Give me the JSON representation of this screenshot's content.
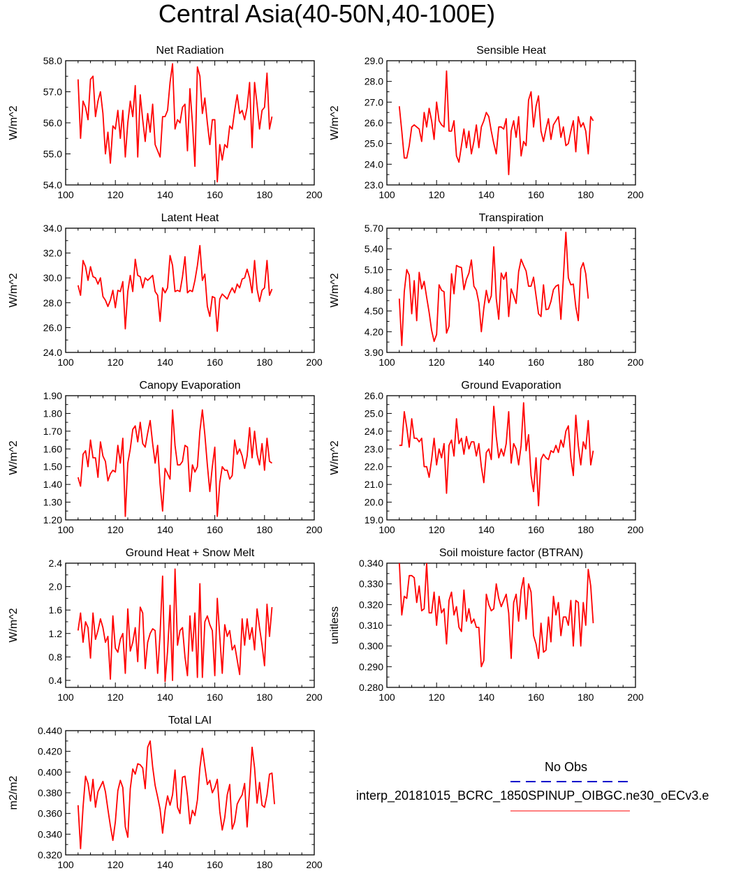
{
  "title": "Central Asia(40-50N,40-100E)",
  "legend": {
    "obs_label": "No Obs",
    "model_label": "interp_20181015_BCRC_1850SPINUP_OIBGC.ne30_oECv3.e",
    "obs_color": "#0000cc",
    "model_color": "#ff0000"
  },
  "chart_data": [
    {
      "type": "line",
      "title": "Net Radiation",
      "ylabel": "W/m^2",
      "xlim": [
        100,
        200
      ],
      "ylim": [
        54.0,
        58.0
      ],
      "xticks": [
        "100",
        "120",
        "140",
        "160",
        "180",
        "200"
      ],
      "yticks": [
        "54.0",
        "55.0",
        "56.0",
        "57.0",
        "58.0"
      ],
      "x_start": 105,
      "series": [
        {
          "color": "#ff0000",
          "values": [
            57.4,
            55.5,
            56.7,
            56.5,
            56.1,
            57.4,
            57.5,
            56.2,
            56.7,
            57.0,
            56.3,
            55.0,
            55.7,
            54.7,
            55.9,
            55.8,
            56.4,
            55.5,
            56.4,
            54.9,
            56.0,
            56.7,
            56.2,
            57.2,
            54.9,
            56.9,
            56.1,
            55.4,
            56.3,
            55.7,
            56.6,
            55.3,
            55.1,
            54.9,
            56.2,
            56.2,
            56.4,
            57.3,
            57.9,
            55.8,
            56.1,
            56.0,
            56.5,
            56.6,
            55.1,
            57.1,
            56.0,
            54.6,
            57.8,
            57.5,
            56.3,
            56.8,
            56.0,
            55.3,
            56.1,
            56.1,
            54.1,
            55.3,
            54.8,
            55.3,
            55.2,
            55.9,
            55.8,
            56.4,
            56.9,
            56.3,
            56.4,
            56.1,
            56.5,
            57.3,
            55.2,
            57.3,
            56.6,
            55.8,
            56.4,
            56.5,
            57.6,
            55.8,
            56.2
          ]
        }
      ]
    },
    {
      "type": "line",
      "title": "Sensible Heat",
      "ylabel": "W/m^2",
      "xlim": [
        100,
        200
      ],
      "ylim": [
        23.0,
        29.0
      ],
      "xticks": [
        "100",
        "120",
        "140",
        "160",
        "180",
        "200"
      ],
      "yticks": [
        "23.0",
        "24.0",
        "25.0",
        "26.0",
        "27.0",
        "28.0",
        "29.0"
      ],
      "x_start": 105,
      "series": [
        {
          "color": "#ff0000",
          "values": [
            26.8,
            25.6,
            24.3,
            24.3,
            24.9,
            25.8,
            25.9,
            25.8,
            25.7,
            25.1,
            26.5,
            25.8,
            26.7,
            26.1,
            25.2,
            27.0,
            26.1,
            25.9,
            25.8,
            28.5,
            25.6,
            25.6,
            26.1,
            24.4,
            24.1,
            24.9,
            25.7,
            24.8,
            25.6,
            24.5,
            25.1,
            25.9,
            24.8,
            25.8,
            26.1,
            26.5,
            26.3,
            25.6,
            25.0,
            24.5,
            25.8,
            25.8,
            25.7,
            26.2,
            23.5,
            25.6,
            26.1,
            25.3,
            26.3,
            24.4,
            25.1,
            24.9,
            27.1,
            27.5,
            25.8,
            26.8,
            27.3,
            25.6,
            25.1,
            25.7,
            26.2,
            25.2,
            25.9,
            26.1,
            26.3,
            25.3,
            25.8,
            24.9,
            25.0,
            25.6,
            26.1,
            24.6,
            26.3,
            25.8,
            26.0,
            25.6,
            24.5,
            26.3,
            26.1
          ]
        }
      ]
    },
    {
      "type": "line",
      "title": "Latent Heat",
      "ylabel": "W/m^2",
      "xlim": [
        100,
        200
      ],
      "ylim": [
        24.0,
        34.0
      ],
      "xticks": [
        "100",
        "120",
        "140",
        "160",
        "180",
        "200"
      ],
      "yticks": [
        "24.0",
        "26.0",
        "28.0",
        "30.0",
        "32.0",
        "34.0"
      ],
      "x_start": 105,
      "series": [
        {
          "color": "#ff0000",
          "values": [
            29.4,
            28.6,
            31.4,
            30.9,
            29.8,
            30.9,
            30.1,
            30.0,
            29.5,
            30.0,
            28.5,
            28.2,
            27.7,
            28.2,
            29.0,
            27.6,
            29.0,
            28.9,
            29.7,
            25.9,
            28.9,
            30.2,
            28.9,
            31.5,
            30.2,
            30.1,
            29.2,
            30.0,
            29.8,
            30.0,
            30.2,
            28.9,
            28.6,
            26.5,
            29.2,
            28.8,
            29.2,
            31.8,
            31.0,
            28.9,
            29.0,
            28.9,
            30.1,
            31.7,
            28.8,
            29.0,
            28.9,
            29.8,
            31.0,
            32.6,
            29.8,
            30.3,
            27.7,
            26.9,
            28.5,
            28.4,
            25.7,
            28.3,
            28.7,
            28.5,
            28.3,
            28.8,
            29.2,
            28.8,
            29.5,
            29.2,
            29.9,
            30.0,
            30.7,
            30.0,
            28.8,
            31.4,
            29.1,
            28.1,
            29.0,
            29.2,
            31.4,
            28.6,
            29.1
          ]
        }
      ]
    },
    {
      "type": "line",
      "title": "Transpiration",
      "ylabel": "W/m^2",
      "xlim": [
        100,
        200
      ],
      "ylim": [
        3.9,
        5.7
      ],
      "xticks": [
        "100",
        "120",
        "140",
        "160",
        "180",
        "200"
      ],
      "yticks": [
        "3.90",
        "4.20",
        "4.50",
        "4.80",
        "5.10",
        "5.40",
        "5.70"
      ],
      "x_start": 105,
      "series": [
        {
          "color": "#ff0000",
          "values": [
            4.68,
            4.0,
            4.78,
            5.1,
            5.02,
            4.46,
            4.94,
            4.36,
            5.06,
            4.82,
            4.93,
            4.7,
            4.48,
            4.22,
            4.06,
            4.16,
            4.88,
            4.8,
            4.78,
            4.18,
            4.28,
            5.04,
            4.75,
            5.16,
            5.14,
            5.13,
            4.81,
            4.96,
            5.05,
            5.24,
            4.86,
            4.8,
            4.62,
            4.2,
            4.54,
            4.8,
            4.62,
            4.72,
            5.43,
            4.68,
            4.38,
            5.05,
            4.96,
            5.06,
            4.42,
            4.82,
            4.72,
            4.61,
            5.07,
            5.25,
            5.16,
            5.08,
            4.86,
            4.86,
            4.99,
            4.72,
            4.46,
            4.42,
            4.88,
            4.52,
            4.53,
            4.64,
            4.81,
            4.86,
            4.88,
            4.38,
            4.98,
            5.64,
            4.98,
            4.88,
            4.89,
            4.56,
            4.36,
            5.11,
            5.2,
            5.04,
            4.68
          ]
        }
      ]
    },
    {
      "type": "line",
      "title": "Canopy Evaporation",
      "ylabel": "W/m^2",
      "xlim": [
        100,
        200
      ],
      "ylim": [
        1.2,
        1.9
      ],
      "xticks": [
        "100",
        "120",
        "140",
        "160",
        "180",
        "200"
      ],
      "yticks": [
        "1.20",
        "1.30",
        "1.40",
        "1.50",
        "1.60",
        "1.70",
        "1.80",
        "1.90"
      ],
      "x_start": 105,
      "series": [
        {
          "color": "#ff0000",
          "values": [
            1.44,
            1.39,
            1.57,
            1.59,
            1.5,
            1.65,
            1.55,
            1.55,
            1.44,
            1.64,
            1.56,
            1.53,
            1.42,
            1.46,
            1.48,
            1.47,
            1.62,
            1.52,
            1.66,
            1.22,
            1.52,
            1.6,
            1.71,
            1.73,
            1.64,
            1.75,
            1.63,
            1.61,
            1.69,
            1.76,
            1.63,
            1.52,
            1.62,
            1.4,
            1.25,
            1.49,
            1.46,
            1.43,
            1.82,
            1.62,
            1.51,
            1.51,
            1.53,
            1.62,
            1.61,
            1.36,
            1.51,
            1.47,
            1.5,
            1.7,
            1.82,
            1.68,
            1.51,
            1.36,
            1.5,
            1.61,
            1.22,
            1.41,
            1.5,
            1.48,
            1.48,
            1.43,
            1.45,
            1.65,
            1.57,
            1.6,
            1.56,
            1.49,
            1.56,
            1.72,
            1.55,
            1.7,
            1.57,
            1.51,
            1.63,
            1.48,
            1.66,
            1.53,
            1.52
          ]
        }
      ]
    },
    {
      "type": "line",
      "title": "Ground Evaporation",
      "ylabel": "W/m^2",
      "xlim": [
        100,
        200
      ],
      "ylim": [
        19.0,
        26.0
      ],
      "xticks": [
        "100",
        "120",
        "140",
        "160",
        "180",
        "200"
      ],
      "yticks": [
        "19.0",
        "20.0",
        "21.0",
        "22.0",
        "23.0",
        "24.0",
        "25.0",
        "26.0"
      ],
      "x_start": 105,
      "series": [
        {
          "color": "#ff0000",
          "values": [
            23.2,
            23.2,
            25.1,
            24.2,
            23.1,
            24.7,
            23.6,
            23.6,
            23.4,
            23.6,
            22.0,
            22.0,
            21.4,
            22.4,
            23.6,
            22.1,
            23.0,
            22.5,
            23.3,
            20.5,
            23.2,
            23.5,
            22.6,
            24.7,
            23.3,
            23.6,
            22.7,
            23.7,
            23.0,
            23.4,
            23.4,
            22.6,
            23.3,
            22.0,
            21.1,
            22.8,
            23.0,
            22.4,
            25.4,
            23.7,
            22.5,
            23.0,
            22.6,
            23.3,
            25.1,
            22.2,
            23.3,
            23.0,
            22.1,
            23.2,
            25.6,
            22.9,
            23.8,
            21.5,
            20.6,
            22.5,
            19.8,
            22.4,
            22.7,
            22.5,
            22.4,
            22.9,
            22.8,
            23.2,
            22.8,
            23.5,
            23.1,
            24.0,
            24.3,
            22.5,
            21.5,
            24.9,
            23.2,
            22.1,
            23.4,
            23.0,
            24.6,
            22.1,
            22.9
          ]
        }
      ]
    },
    {
      "type": "line",
      "title": "Ground Heat + Snow Melt",
      "ylabel": "W/m^2",
      "xlim": [
        100,
        200
      ],
      "ylim": [
        0.28,
        2.4
      ],
      "xticks": [
        "100",
        "120",
        "140",
        "160",
        "180",
        "200"
      ],
      "yticks": [
        "0.4",
        "0.8",
        "1.2",
        "1.6",
        "2.0",
        "2.4"
      ],
      "x_start": 105,
      "series": [
        {
          "color": "#ff0000",
          "values": [
            1.25,
            1.55,
            1.05,
            1.4,
            1.3,
            0.78,
            1.55,
            1.1,
            1.25,
            1.45,
            1.3,
            1.05,
            1.15,
            0.42,
            1.5,
            0.95,
            0.88,
            1.1,
            1.2,
            0.52,
            1.62,
            0.9,
            1.05,
            1.3,
            0.72,
            1.65,
            1.55,
            0.6,
            1.05,
            1.2,
            1.28,
            1.25,
            0.52,
            1.2,
            2.18,
            0.38,
            0.9,
            1.68,
            0.4,
            2.3,
            1.0,
            1.25,
            1.3,
            0.8,
            0.48,
            1.5,
            0.9,
            1.55,
            0.45,
            2.05,
            0.45,
            1.4,
            1.5,
            1.35,
            1.25,
            0.48,
            1.8,
            1.15,
            0.52,
            1.35,
            1.15,
            1.25,
            0.92,
            1.0,
            0.75,
            0.5,
            1.45,
            1.0,
            1.45,
            1.1,
            1.3,
            0.92,
            1.62,
            1.3,
            1.0,
            0.65,
            1.7,
            1.15,
            1.65
          ]
        }
      ]
    },
    {
      "type": "line",
      "title": "Soil moisture factor (BTRAN)",
      "ylabel": "unitless",
      "xlim": [
        100,
        200
      ],
      "ylim": [
        0.28,
        0.34
      ],
      "xticks": [
        "100",
        "120",
        "140",
        "160",
        "180",
        "200"
      ],
      "yticks": [
        "0.280",
        "0.290",
        "0.300",
        "0.310",
        "0.320",
        "0.330",
        "0.340"
      ],
      "x_start": 105,
      "series": [
        {
          "color": "#ff0000",
          "values": [
            0.341,
            0.315,
            0.324,
            0.323,
            0.334,
            0.334,
            0.333,
            0.321,
            0.329,
            0.317,
            0.318,
            0.34,
            0.316,
            0.316,
            0.326,
            0.31,
            0.324,
            0.316,
            0.318,
            0.301,
            0.322,
            0.326,
            0.315,
            0.319,
            0.309,
            0.307,
            0.327,
            0.312,
            0.318,
            0.311,
            0.313,
            0.309,
            0.309,
            0.29,
            0.293,
            0.325,
            0.32,
            0.317,
            0.318,
            0.33,
            0.323,
            0.319,
            0.322,
            0.325,
            0.316,
            0.294,
            0.321,
            0.325,
            0.312,
            0.327,
            0.333,
            0.313,
            0.33,
            0.326,
            0.305,
            0.301,
            0.294,
            0.311,
            0.297,
            0.298,
            0.314,
            0.302,
            0.324,
            0.315,
            0.321,
            0.305,
            0.314,
            0.314,
            0.31,
            0.322,
            0.3,
            0.322,
            0.321,
            0.3,
            0.321,
            0.31,
            0.337,
            0.329,
            0.311
          ]
        }
      ]
    },
    {
      "type": "line",
      "title": "Total LAI",
      "ylabel": "m2/m2",
      "xlim": [
        100,
        200
      ],
      "ylim": [
        0.32,
        0.44
      ],
      "xticks": [
        "100",
        "120",
        "140",
        "160",
        "180",
        "200"
      ],
      "yticks": [
        "0.320",
        "0.340",
        "0.360",
        "0.380",
        "0.400",
        "0.420",
        "0.440"
      ],
      "x_start": 105,
      "series": [
        {
          "color": "#ff0000",
          "values": [
            0.368,
            0.326,
            0.366,
            0.396,
            0.389,
            0.372,
            0.393,
            0.366,
            0.381,
            0.386,
            0.391,
            0.381,
            0.364,
            0.348,
            0.334,
            0.352,
            0.382,
            0.392,
            0.385,
            0.347,
            0.337,
            0.384,
            0.403,
            0.398,
            0.408,
            0.407,
            0.404,
            0.384,
            0.424,
            0.43,
            0.405,
            0.387,
            0.376,
            0.364,
            0.341,
            0.363,
            0.377,
            0.368,
            0.378,
            0.402,
            0.366,
            0.36,
            0.395,
            0.396,
            0.377,
            0.35,
            0.363,
            0.358,
            0.373,
            0.404,
            0.423,
            0.405,
            0.388,
            0.392,
            0.38,
            0.385,
            0.393,
            0.362,
            0.344,
            0.356,
            0.378,
            0.388,
            0.345,
            0.352,
            0.369,
            0.374,
            0.378,
            0.389,
            0.347,
            0.384,
            0.424,
            0.404,
            0.37,
            0.39,
            0.368,
            0.366,
            0.378,
            0.398,
            0.399,
            0.369
          ]
        }
      ]
    }
  ]
}
